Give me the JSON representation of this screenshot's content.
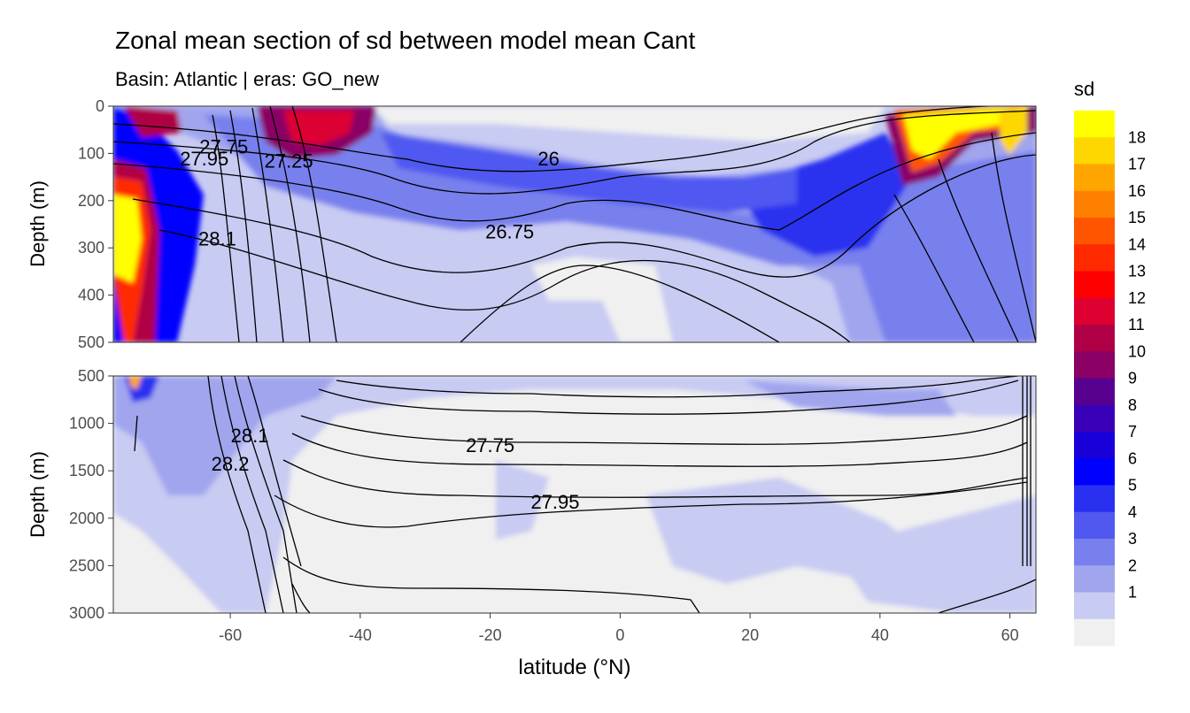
{
  "chart_data": {
    "type": "heatmap",
    "title": "Zonal mean section of sd between model mean Cant",
    "subtitle": "Basin: Atlantic | eras: GO_new",
    "xlabel": "latitude (°N)",
    "x_ticks": [
      -60,
      -40,
      -20,
      0,
      20,
      40,
      60
    ],
    "xlim": [
      -78,
      64
    ],
    "legend": {
      "title": "sd",
      "placement": "right",
      "levels": [
        "18",
        "17",
        "16",
        "15",
        "14",
        "13",
        "12",
        "11",
        "10",
        "9",
        "8",
        "7",
        "6",
        "5",
        "4",
        "3",
        "2",
        "1"
      ],
      "colors": [
        "#ffff00",
        "#ffd700",
        "#ffa500",
        "#ff8000",
        "#ff5500",
        "#ff2a00",
        "#ff0000",
        "#dd0030",
        "#b00045",
        "#8a0065",
        "#580090",
        "#3a00b8",
        "#1a00d8",
        "#0000ff",
        "#2a30f0",
        "#5058f0",
        "#7880ee",
        "#a0a5ee",
        "#c8cbf2",
        "#f0f0f0"
      ]
    },
    "panels": [
      {
        "ylabel": "Depth (m)",
        "ylim": [
          0,
          500
        ],
        "y_ticks": [
          0,
          100,
          200,
          300,
          400,
          500
        ],
        "contour_labels": [
          {
            "text": "26",
            "lat": -11,
            "depth": 125
          },
          {
            "text": "26.75",
            "lat": -17,
            "depth": 280
          },
          {
            "text": "27.25",
            "lat": -51,
            "depth": 130
          },
          {
            "text": "27.75",
            "lat": -61,
            "depth": 100
          },
          {
            "text": "27.95",
            "lat": -64,
            "depth": 125
          },
          {
            "text": "28.1",
            "lat": -62,
            "depth": 295
          }
        ]
      },
      {
        "ylabel": "Depth (m)",
        "ylim": [
          500,
          3000
        ],
        "y_ticks": [
          500,
          1000,
          1500,
          2000,
          2500,
          3000
        ],
        "contour_labels": [
          {
            "text": "27.75",
            "lat": -20,
            "depth": 1300
          },
          {
            "text": "27.95",
            "lat": -10,
            "depth": 1900
          },
          {
            "text": "28.1",
            "lat": -57,
            "depth": 1200
          },
          {
            "text": "28.2",
            "lat": -60,
            "depth": 1500
          }
        ]
      }
    ]
  }
}
